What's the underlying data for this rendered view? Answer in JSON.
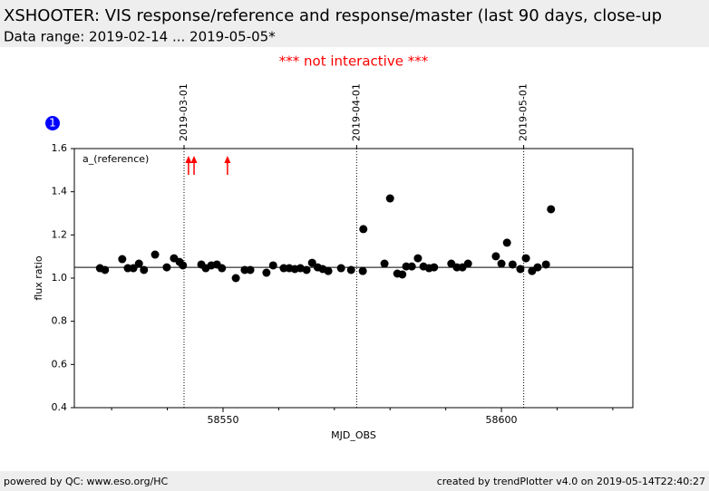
{
  "header": {
    "title": "XSHOOTER: VIS response/reference and response/master (last 90 days, close-up",
    "subtitle": "Data range: 2019-02-14 ... 2019-05-05*",
    "notice": "*** not interactive ***"
  },
  "footer": {
    "left": "powered by QC: www.eso.org/HC",
    "right": "created by trendPlotter v4.0 on 2019-05-14T22:40:27"
  },
  "chart_data": {
    "type": "scatter",
    "badge": "1",
    "panel_label": "a_(reference)",
    "xlabel": "MJD_OBS",
    "ylabel": "flux ratio",
    "xlim": [
      58523.3,
      58623.6
    ],
    "ylim": [
      0.4,
      1.6
    ],
    "xticks": [
      58550,
      58600
    ],
    "xminor_ticks": [
      58530,
      58540,
      58560,
      58570,
      58580,
      58590,
      58610,
      58620
    ],
    "yticks": [
      0.4,
      0.6,
      0.8,
      {
        "value": 1,
        "label": "1.0"
      },
      1.2,
      1.4,
      1.6
    ],
    "reference_line": 1.05,
    "date_markers": [
      {
        "x": 58543,
        "label": "2019-03-01"
      },
      {
        "x": 58574,
        "label": "2019-04-01"
      },
      {
        "x": 58604,
        "label": "2019-05-01"
      }
    ],
    "outliers_above_x": [
      58543.8,
      58544.8,
      58550.8
    ],
    "outlier_color": "#ff0000",
    "color": "#000000",
    "x": [
      58527.9,
      58528.8,
      58531.9,
      58532.9,
      58533.9,
      58534.9,
      58535.8,
      58537.8,
      58539.9,
      58541.2,
      58542.2,
      58542.8,
      58546.1,
      58546.9,
      58547.9,
      58548.9,
      58549.8,
      58552.3,
      58553.9,
      58554.9,
      58557.8,
      58559.0,
      58560.9,
      58561.9,
      58562.9,
      58563.9,
      58565.0,
      58566.0,
      58567.0,
      58567.9,
      58568.9,
      58571.2,
      58573.0,
      58575.1,
      58575.2,
      58579.0,
      58580.0,
      58581.3,
      58582.2,
      58582.9,
      58583.9,
      58585.0,
      58586.0,
      58587.0,
      58587.9,
      58591.0,
      58592.0,
      58593.0,
      58594.0,
      58599.0,
      58600.0,
      58601.0,
      58602.0,
      58603.4,
      58604.4,
      58605.5,
      58606.5,
      58608.0,
      58608.9
    ],
    "values": [
      1.046,
      1.038,
      1.088,
      1.046,
      1.046,
      1.067,
      1.038,
      1.109,
      1.05,
      1.092,
      1.075,
      1.059,
      1.063,
      1.046,
      1.059,
      1.063,
      1.046,
      1.0,
      1.038,
      1.038,
      1.025,
      1.059,
      1.046,
      1.046,
      1.042,
      1.046,
      1.038,
      1.071,
      1.05,
      1.042,
      1.033,
      1.046,
      1.038,
      1.033,
      1.227,
      1.067,
      1.369,
      1.021,
      1.017,
      1.054,
      1.054,
      1.092,
      1.054,
      1.046,
      1.05,
      1.067,
      1.05,
      1.05,
      1.067,
      1.101,
      1.067,
      1.164,
      1.063,
      1.042,
      1.092,
      1.033,
      1.05,
      1.063,
      1.319
    ]
  }
}
